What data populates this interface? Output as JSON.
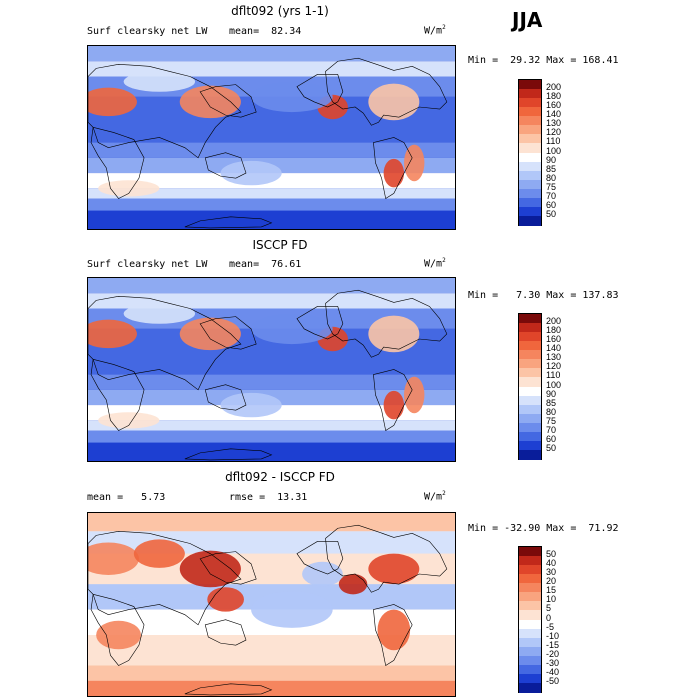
{
  "season": "JJA",
  "chart_data": [
    {
      "type": "heatmap",
      "title": "dflt092 (yrs 1-1)",
      "variable": "Surf clearsky net LW",
      "units": "W/m2",
      "stat_text": "mean=  82.34",
      "minmax_text": "Min =  29.32 Max = 168.41",
      "levels": [
        "200",
        "180",
        "160",
        "140",
        "130",
        "120",
        "110",
        "100",
        "90",
        "85",
        "80",
        "75",
        "70",
        "60",
        "50"
      ],
      "colors": [
        "#7a0a0a",
        "#c1281a",
        "#e0452a",
        "#f0663d",
        "#f5855e",
        "#f9a47f",
        "#fcc4a6",
        "#fde3d3",
        "#ffffff",
        "#d6e2fb",
        "#b1c7f8",
        "#8eaaf2",
        "#6c8cec",
        "#4468e2",
        "#1d3fd2",
        "#091d9a"
      ]
    },
    {
      "type": "heatmap",
      "title": "ISCCP FD",
      "variable": "Surf clearsky net LW",
      "units": "W/m2",
      "stat_text": "mean=  76.61",
      "minmax_text": "Min =   7.30 Max = 137.83",
      "levels": [
        "200",
        "180",
        "160",
        "140",
        "130",
        "120",
        "110",
        "100",
        "90",
        "85",
        "80",
        "75",
        "70",
        "60",
        "50"
      ],
      "colors": [
        "#7a0a0a",
        "#c1281a",
        "#e0452a",
        "#f0663d",
        "#f5855e",
        "#f9a47f",
        "#fcc4a6",
        "#fde3d3",
        "#ffffff",
        "#d6e2fb",
        "#b1c7f8",
        "#8eaaf2",
        "#6c8cec",
        "#4468e2",
        "#1d3fd2",
        "#091d9a"
      ]
    },
    {
      "type": "heatmap",
      "title": "dflt092 - ISCCP FD",
      "units": "W/m2",
      "stat_text": "mean =   5.73",
      "rmse_text": "rmse =  13.31",
      "minmax_text": "Min = -32.90 Max =  71.92",
      "levels": [
        "50",
        "40",
        "30",
        "20",
        "15",
        "10",
        "5",
        "0",
        "-5",
        "-10",
        "-15",
        "-20",
        "-30",
        "-40",
        "-50"
      ],
      "colors": [
        "#7a0a0a",
        "#c1281a",
        "#e0452a",
        "#f0663d",
        "#f5855e",
        "#f9a47f",
        "#fcc4a6",
        "#fde3d3",
        "#ffffff",
        "#d6e2fb",
        "#b1c7f8",
        "#8eaaf2",
        "#6c8cec",
        "#4468e2",
        "#1d3fd2",
        "#091d9a"
      ]
    }
  ]
}
